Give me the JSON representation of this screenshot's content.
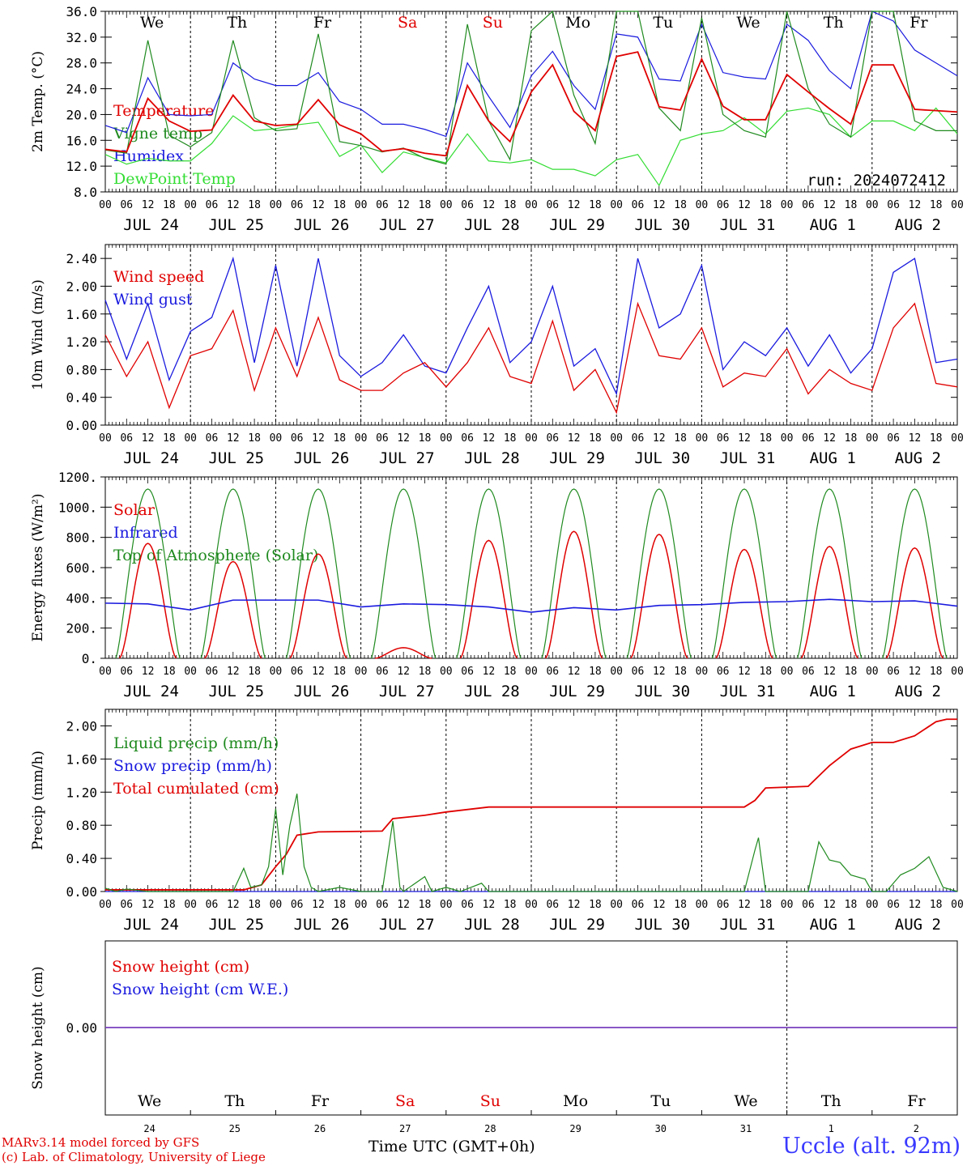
{
  "footer": {
    "model_line": "MARv3.14 model forced by GFS",
    "credit_line": "(c) Lab. of Climatology, University of Liege",
    "xlabel": "Time UTC (GMT+0h)",
    "station": "Uccle (alt. 92m)"
  },
  "colors": {
    "red": "#e00000",
    "green": "#1f8a1f",
    "blue": "#1a1adf",
    "lightgreen": "#33dd33",
    "purple": "#7a3fbf"
  },
  "chart_data": [
    {
      "type": "line",
      "id": "temp",
      "ylabel": "2m Temp. (°C)",
      "ylim": [
        8,
        36
      ],
      "yticks": [
        "8.0",
        "12.0",
        "16.0",
        "20.0",
        "24.0",
        "28.0",
        "32.0",
        "36.0"
      ],
      "day_names": [
        {
          "text": "We",
          "weekend": false
        },
        {
          "text": "Th",
          "weekend": false
        },
        {
          "text": "Fr",
          "weekend": false
        },
        {
          "text": "Sa",
          "weekend": true
        },
        {
          "text": "Su",
          "weekend": true
        },
        {
          "text": "Mo",
          "weekend": false
        },
        {
          "text": "Tu",
          "weekend": false
        },
        {
          "text": "We",
          "weekend": false
        },
        {
          "text": "Th",
          "weekend": false
        },
        {
          "text": "Fr",
          "weekend": false
        }
      ],
      "annotation": "run: 2024072412",
      "x_hours": [
        0,
        6,
        12,
        18,
        24,
        30,
        36,
        42,
        48,
        54,
        60,
        66,
        72,
        78,
        84,
        90,
        96,
        102,
        108,
        114,
        120,
        126,
        132,
        138,
        144,
        150,
        156,
        162,
        168,
        174,
        180,
        186,
        192,
        198,
        204,
        210,
        216,
        222,
        228,
        234,
        240
      ],
      "series": [
        {
          "name": "Temperature",
          "color": "red",
          "values": [
            14.6,
            14.2,
            22.5,
            19.0,
            17.4,
            17.6,
            23.0,
            19.0,
            18.3,
            18.5,
            22.3,
            18.4,
            17.0,
            14.3,
            14.7,
            14.0,
            13.6,
            24.5,
            19.0,
            15.8,
            23.5,
            27.7,
            20.5,
            17.5,
            29.0,
            29.7,
            21.2,
            20.7,
            28.6,
            21.3,
            19.2,
            19.2,
            26.2,
            23.5,
            20.9,
            18.5,
            27.7,
            27.7,
            20.8,
            20.6,
            20.4
          ]
        },
        {
          "name": "Vigne temp",
          "color": "green",
          "values": [
            14.5,
            14.0,
            31.5,
            16.8,
            15.0,
            17.2,
            31.5,
            19.5,
            17.5,
            17.8,
            32.5,
            15.8,
            15.2,
            14.2,
            14.8,
            13.2,
            12.3,
            34.0,
            19.0,
            13.0,
            33.0,
            36.5,
            23.0,
            15.5,
            37.0,
            37.0,
            21.0,
            17.5,
            35.0,
            20.0,
            17.5,
            16.5,
            37.0,
            24.0,
            18.5,
            16.5,
            37.0,
            36.5,
            19.0,
            17.5,
            17.5
          ]
        },
        {
          "name": "Humidex",
          "color": "blue",
          "values": [
            18.3,
            17.2,
            25.7,
            20.0,
            19.8,
            20.0,
            28.0,
            25.5,
            24.5,
            24.5,
            26.5,
            22.0,
            20.8,
            18.5,
            18.5,
            17.7,
            16.6,
            28.0,
            22.8,
            18.0,
            26.0,
            29.8,
            24.5,
            20.8,
            32.5,
            32.0,
            25.5,
            25.2,
            34.0,
            26.5,
            25.8,
            25.5,
            34.0,
            31.5,
            26.8,
            24.0,
            36.0,
            34.5,
            30.0,
            28.0,
            26.0
          ]
        },
        {
          "name": "DewPoint Temp",
          "color": "lightgreen",
          "values": [
            13.8,
            12.3,
            13.2,
            12.8,
            12.8,
            15.5,
            19.8,
            17.5,
            17.8,
            18.4,
            18.8,
            13.5,
            15.3,
            11.0,
            14.2,
            13.3,
            12.5,
            17.0,
            12.8,
            12.5,
            13.0,
            11.5,
            11.5,
            10.5,
            13.0,
            13.8,
            9.0,
            16.0,
            17.0,
            17.5,
            19.5,
            17.0,
            20.5,
            21.0,
            20.0,
            16.5,
            19.0,
            19.0,
            17.5,
            21.0,
            17.0
          ]
        }
      ]
    },
    {
      "type": "line",
      "id": "wind",
      "ylabel": "10m Wind (m/s)",
      "ylim": [
        0,
        2.6
      ],
      "yticks": [
        "0.00",
        "0.40",
        "0.80",
        "1.20",
        "1.60",
        "2.00",
        "2.40"
      ],
      "x_hours": [
        0,
        6,
        12,
        18,
        24,
        30,
        36,
        42,
        48,
        54,
        60,
        66,
        72,
        78,
        84,
        90,
        96,
        102,
        108,
        114,
        120,
        126,
        132,
        138,
        144,
        150,
        156,
        162,
        168,
        174,
        180,
        186,
        192,
        198,
        204,
        210,
        216,
        222,
        228,
        234,
        240
      ],
      "series": [
        {
          "name": "Wind speed",
          "color": "red",
          "values": [
            1.3,
            0.7,
            1.2,
            0.25,
            1.0,
            1.1,
            1.65,
            0.5,
            1.4,
            0.7,
            1.55,
            0.65,
            0.5,
            0.5,
            0.75,
            0.9,
            0.55,
            0.9,
            1.4,
            0.7,
            0.6,
            1.5,
            0.5,
            0.8,
            0.18,
            1.75,
            1.0,
            0.95,
            1.4,
            0.55,
            0.75,
            0.7,
            1.1,
            0.45,
            0.8,
            0.6,
            0.5,
            1.4,
            1.75,
            0.6,
            0.55
          ]
        },
        {
          "name": "Wind gust",
          "color": "blue",
          "values": [
            1.8,
            0.95,
            1.75,
            0.65,
            1.35,
            1.55,
            2.4,
            0.9,
            2.3,
            0.85,
            2.4,
            1.0,
            0.7,
            0.9,
            1.3,
            0.85,
            0.75,
            1.4,
            2.0,
            0.9,
            1.2,
            2.0,
            0.85,
            1.1,
            0.45,
            2.4,
            1.4,
            1.6,
            2.3,
            0.8,
            1.2,
            1.0,
            1.4,
            0.85,
            1.3,
            0.75,
            1.1,
            2.2,
            2.4,
            0.9,
            0.95
          ]
        }
      ]
    },
    {
      "type": "line",
      "id": "energy",
      "ylabel": "Energy fluxes (W/m²)",
      "ylim": [
        0,
        1200
      ],
      "yticks": [
        "0.",
        "200.",
        "400.",
        "600.",
        "800.",
        "1000.",
        "1200."
      ],
      "series": [
        {
          "name": "Solar",
          "color": "red",
          "peaks": [
            760,
            640,
            690,
            70,
            780,
            840,
            820,
            720,
            740,
            730
          ]
        },
        {
          "name": "Infrared",
          "color": "blue",
          "x_hours": [
            0,
            12,
            24,
            36,
            48,
            60,
            72,
            84,
            96,
            108,
            120,
            132,
            144,
            156,
            168,
            180,
            192,
            204,
            216,
            228,
            240
          ],
          "values": [
            365,
            360,
            320,
            385,
            385,
            385,
            340,
            360,
            355,
            340,
            305,
            335,
            320,
            350,
            355,
            370,
            375,
            390,
            375,
            380,
            345
          ]
        },
        {
          "name": "Top of Atmosphere (Solar)",
          "color": "green",
          "peak": 1120
        }
      ]
    },
    {
      "type": "line",
      "id": "precip",
      "ylabel": "Precip (mm/h)",
      "ylim": [
        0,
        2.2
      ],
      "yticks": [
        "0.00",
        "0.40",
        "0.80",
        "1.20",
        "1.60",
        "2.00"
      ],
      "series": [
        {
          "name": "Liquid precip (mm/h)",
          "color": "green",
          "points": [
            [
              0,
              0.04
            ],
            [
              3,
              0.0
            ],
            [
              6,
              0.03
            ],
            [
              12,
              0.0
            ],
            [
              36,
              0.0
            ],
            [
              39,
              0.28
            ],
            [
              41,
              0.05
            ],
            [
              44,
              0.08
            ],
            [
              46,
              0.3
            ],
            [
              48,
              1.0
            ],
            [
              50,
              0.2
            ],
            [
              52,
              0.8
            ],
            [
              54,
              1.18
            ],
            [
              56,
              0.3
            ],
            [
              58,
              0.05
            ],
            [
              60,
              0.0
            ],
            [
              66,
              0.05
            ],
            [
              72,
              0.0
            ],
            [
              78,
              0.0
            ],
            [
              81,
              0.85
            ],
            [
              83,
              0.05
            ],
            [
              84,
              0.0
            ],
            [
              90,
              0.18
            ],
            [
              92,
              0.0
            ],
            [
              96,
              0.05
            ],
            [
              100,
              0.0
            ],
            [
              106,
              0.1
            ],
            [
              108,
              0.0
            ],
            [
              180,
              0.0
            ],
            [
              183,
              0.5
            ],
            [
              184,
              0.65
            ],
            [
              186,
              0.0
            ],
            [
              198,
              0.0
            ],
            [
              201,
              0.6
            ],
            [
              204,
              0.38
            ],
            [
              207,
              0.35
            ],
            [
              210,
              0.2
            ],
            [
              214,
              0.15
            ],
            [
              216,
              0.0
            ],
            [
              220,
              0.0
            ],
            [
              224,
              0.2
            ],
            [
              228,
              0.28
            ],
            [
              232,
              0.42
            ],
            [
              236,
              0.05
            ],
            [
              240,
              0.0
            ]
          ]
        },
        {
          "name": "Snow precip (mm/h)",
          "color": "blue",
          "points": [
            [
              0,
              0.0
            ],
            [
              240,
              0.0
            ]
          ]
        },
        {
          "name": "Total cumulated (cm)",
          "color": "red",
          "points": [
            [
              0,
              0.02
            ],
            [
              39,
              0.02
            ],
            [
              44,
              0.08
            ],
            [
              48,
              0.3
            ],
            [
              51,
              0.45
            ],
            [
              54,
              0.68
            ],
            [
              60,
              0.72
            ],
            [
              78,
              0.73
            ],
            [
              81,
              0.88
            ],
            [
              90,
              0.92
            ],
            [
              96,
              0.96
            ],
            [
              108,
              1.02
            ],
            [
              180,
              1.02
            ],
            [
              183,
              1.1
            ],
            [
              186,
              1.25
            ],
            [
              198,
              1.27
            ],
            [
              204,
              1.52
            ],
            [
              210,
              1.72
            ],
            [
              216,
              1.8
            ],
            [
              222,
              1.8
            ],
            [
              228,
              1.88
            ],
            [
              234,
              2.05
            ],
            [
              237,
              2.08
            ],
            [
              240,
              2.08
            ]
          ]
        }
      ]
    },
    {
      "type": "line",
      "id": "snow",
      "ylabel": "Snow height (cm)",
      "yticks": [
        "0.00"
      ],
      "series": [
        {
          "name": "Snow height (cm)",
          "color": "red",
          "values": [
            0,
            0
          ]
        },
        {
          "name": "Snow height (cm W.E.)",
          "color": "blue",
          "values": [
            0,
            0
          ]
        }
      ]
    }
  ],
  "x_axis": {
    "hour_labels": [
      "00",
      "06",
      "12",
      "18"
    ],
    "day_labels": [
      "JUL 24",
      "JUL 25",
      "JUL 26",
      "JUL 27",
      "JUL 28",
      "JUL 29",
      "JUL 30",
      "JUL 31",
      "AUG  1",
      "AUG  2"
    ],
    "bottom_day_names": [
      {
        "text": "We",
        "weekend": false
      },
      {
        "text": "Th",
        "weekend": false
      },
      {
        "text": "Fr",
        "weekend": false
      },
      {
        "text": "Sa",
        "weekend": true
      },
      {
        "text": "Su",
        "weekend": true
      },
      {
        "text": "Mo",
        "weekend": false
      },
      {
        "text": "Tu",
        "weekend": false
      },
      {
        "text": "We",
        "weekend": false
      },
      {
        "text": "Th",
        "weekend": false
      },
      {
        "text": "Fr",
        "weekend": false
      }
    ],
    "bottom_day_numbers": [
      "24",
      "25",
      "26",
      "27",
      "28",
      "29",
      "30",
      "31",
      "1",
      "2"
    ]
  }
}
